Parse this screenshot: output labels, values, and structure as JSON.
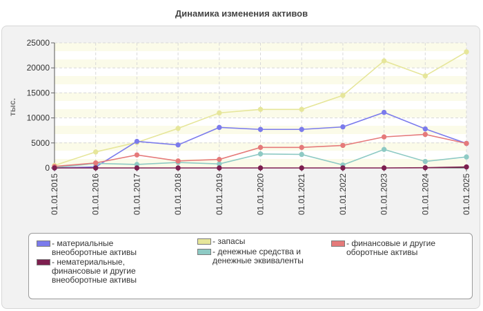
{
  "chart_data": {
    "type": "line",
    "title": "Динамика изменения активов",
    "ylabel": "тыс.",
    "xlabel": "",
    "ylim": [
      0,
      25000
    ],
    "yticks": [
      0,
      5000,
      10000,
      15000,
      20000,
      25000
    ],
    "grid": true,
    "legend_position": "bottom",
    "categories": [
      "01.01.2015",
      "01.01.2016",
      "01.01.2017",
      "01.01.2018",
      "01.01.2019",
      "01.01.2020",
      "01.01.2021",
      "01.01.2022",
      "01.01.2023",
      "01.01.2024",
      "01.01.2025"
    ],
    "series": [
      {
        "name": "материальные внеоборотные активы",
        "color": "#7b7bec",
        "values": [
          0,
          200,
          5300,
          4600,
          8100,
          7700,
          7700,
          8200,
          11100,
          7800,
          4900
        ]
      },
      {
        "name": "нематериальные, финансовые и другие внеоборотные активы",
        "color": "#7d1f4f",
        "values": [
          0,
          0,
          0,
          0,
          0,
          0,
          0,
          0,
          0,
          50,
          200
        ]
      },
      {
        "name": "запасы",
        "color": "#e6e69a",
        "values": [
          500,
          3200,
          5100,
          7900,
          11000,
          11700,
          11700,
          14500,
          21400,
          18400,
          23200
        ]
      },
      {
        "name": "денежные средства и денежные эквиваленты",
        "color": "#8ecac4",
        "values": [
          100,
          900,
          700,
          1100,
          800,
          2800,
          2700,
          600,
          3700,
          1300,
          2200
        ]
      },
      {
        "name": "финансовые и другие оборотные активы",
        "color": "#e57a7a",
        "values": [
          300,
          1000,
          2600,
          1400,
          1700,
          4100,
          4100,
          4500,
          6200,
          6700,
          4900
        ]
      }
    ]
  }
}
